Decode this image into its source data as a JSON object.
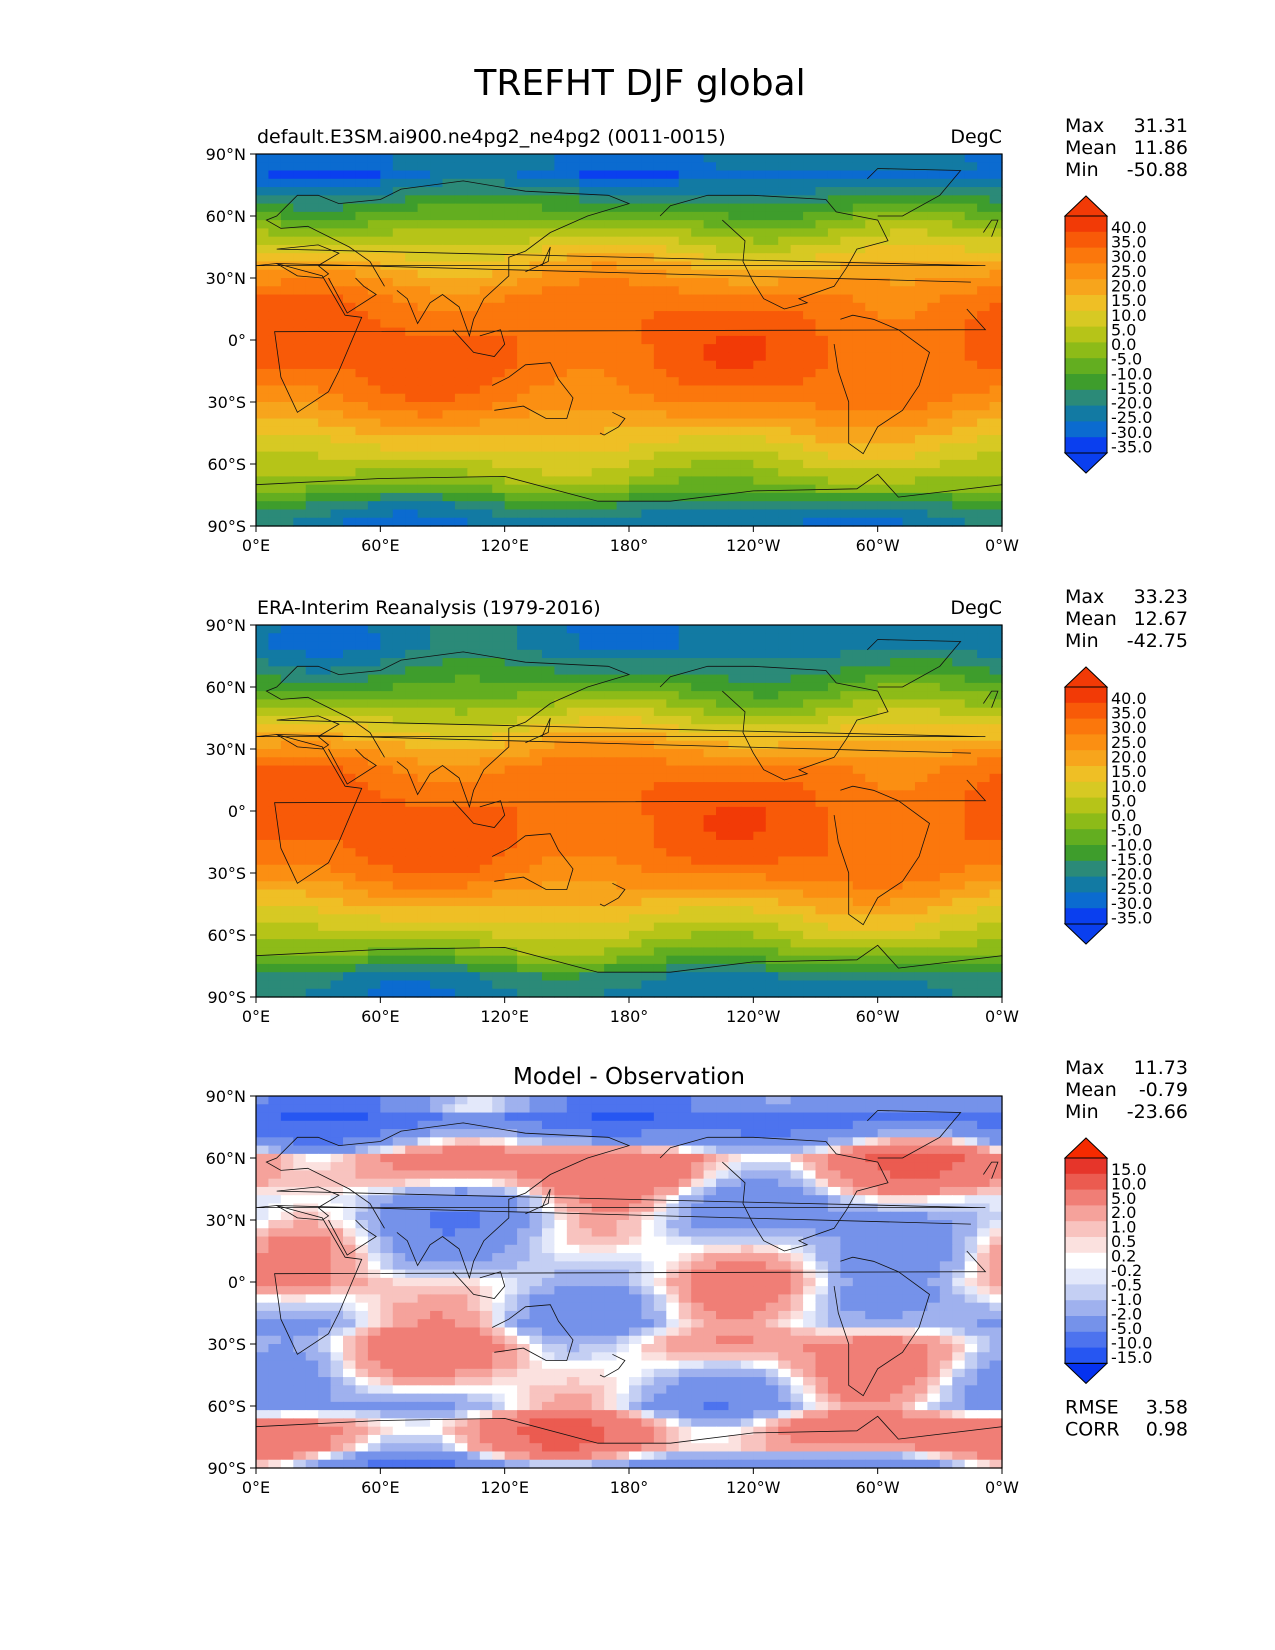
{
  "figure": {
    "title": "TREFHT DJF global"
  },
  "lat_ticks": [
    "90°N",
    "60°N",
    "30°N",
    "0°",
    "30°S",
    "60°S",
    "90°S"
  ],
  "lon_ticks": [
    "0°E",
    "60°E",
    "120°E",
    "180°",
    "120°W",
    "60°W",
    "0°W"
  ],
  "colors": {
    "abs_levels": [
      "#0a3fef",
      "#0b6bd0",
      "#127aa3",
      "#2b8a78",
      "#3e9d2c",
      "#63ae20",
      "#8dbb18",
      "#b6c418",
      "#d7c923",
      "#efbf25",
      "#f7a51c",
      "#fb8f12",
      "#fb770c",
      "#f85a08",
      "#f23a06"
    ],
    "diff_levels": [
      "#0532f0",
      "#2656f2",
      "#4d73ee",
      "#7592ea",
      "#9fb1ee",
      "#c4cff3",
      "#e3e8fa",
      "#ffffff",
      "#fbe1df",
      "#f8c3bf",
      "#f5a29b",
      "#f07e76",
      "#eb5b50",
      "#e6352a",
      "#f52a00"
    ]
  },
  "chart_data": [
    {
      "type": "heatmap",
      "title": "default.E3SM.ai900.ne4pg2_ne4pg2 (0011-0015)",
      "units": "DegC",
      "stats": {
        "max": "31.31",
        "mean": "11.86",
        "min": "-50.88"
      },
      "colorbar_levels": [
        "40.0",
        "35.0",
        "30.0",
        "25.0",
        "20.0",
        "15.0",
        "10.0",
        "5.0",
        "0.0",
        "-5.0",
        "-10.0",
        "-15.0",
        "-20.0",
        "-25.0",
        "-30.0",
        "-35.0"
      ],
      "xlim": [
        0,
        360
      ],
      "ylim": [
        -90,
        90
      ],
      "lat_band_values": [
        [
          80,
          -33
        ],
        [
          70,
          -22
        ],
        [
          60,
          -12
        ],
        [
          50,
          -2
        ],
        [
          40,
          7
        ],
        [
          30,
          15
        ],
        [
          20,
          22
        ],
        [
          10,
          25
        ],
        [
          0,
          26
        ],
        [
          -10,
          26
        ],
        [
          -20,
          24
        ],
        [
          -30,
          20
        ],
        [
          -40,
          13
        ],
        [
          -50,
          6
        ],
        [
          -60,
          -1
        ],
        [
          -70,
          -8
        ],
        [
          -80,
          -22
        ],
        [
          -90,
          -30
        ]
      ]
    },
    {
      "type": "heatmap",
      "title": "ERA-Interim Reanalysis (1979-2016)",
      "units": "DegC",
      "stats": {
        "max": "33.23",
        "mean": "12.67",
        "min": "-42.75"
      },
      "colorbar_levels": [
        "40.0",
        "35.0",
        "30.0",
        "25.0",
        "20.0",
        "15.0",
        "10.0",
        "5.0",
        "0.0",
        "-5.0",
        "-10.0",
        "-15.0",
        "-20.0",
        "-25.0",
        "-30.0",
        "-35.0"
      ],
      "xlim": [
        0,
        360
      ],
      "ylim": [
        -90,
        90
      ],
      "lat_band_values": [
        [
          80,
          -28
        ],
        [
          70,
          -22
        ],
        [
          60,
          -14
        ],
        [
          50,
          -5
        ],
        [
          40,
          5
        ],
        [
          30,
          14
        ],
        [
          20,
          22
        ],
        [
          10,
          25
        ],
        [
          0,
          26
        ],
        [
          -10,
          26
        ],
        [
          -20,
          25
        ],
        [
          -30,
          21
        ],
        [
          -40,
          14
        ],
        [
          -50,
          6
        ],
        [
          -60,
          -1
        ],
        [
          -70,
          -10
        ],
        [
          -80,
          -24
        ],
        [
          -90,
          -28
        ]
      ]
    },
    {
      "type": "heatmap",
      "title": "Model - Observation",
      "units": "",
      "stats": {
        "max": "11.73",
        "mean": "-0.79",
        "min": "-23.66"
      },
      "colorbar_levels": [
        "15.0",
        "10.0",
        "5.0",
        "2.0",
        "1.0",
        "0.5",
        "0.2",
        "-0.2",
        "-0.5",
        "-1.0",
        "-2.0",
        "-5.0",
        "-10.0",
        "-15.0"
      ],
      "metrics": {
        "rmse": "3.58",
        "corr": "0.98"
      },
      "xlim": [
        0,
        360
      ],
      "ylim": [
        -90,
        90
      ],
      "lat_band_values": [
        [
          80,
          -8
        ],
        [
          70,
          -3
        ],
        [
          60,
          3
        ],
        [
          50,
          2
        ],
        [
          40,
          -1
        ],
        [
          30,
          -2
        ],
        [
          20,
          -1
        ],
        [
          10,
          -0.4
        ],
        [
          0,
          0.3
        ],
        [
          -10,
          -0.6
        ],
        [
          -20,
          -1
        ],
        [
          -30,
          1.5
        ],
        [
          -40,
          0.8
        ],
        [
          -50,
          -0.5
        ],
        [
          -60,
          -1.5
        ],
        [
          -70,
          3
        ],
        [
          -80,
          2
        ],
        [
          -90,
          -4
        ]
      ]
    }
  ],
  "labels": {
    "max": "Max",
    "mean": "Mean",
    "min": "Min",
    "rmse": "RMSE",
    "corr": "CORR"
  }
}
